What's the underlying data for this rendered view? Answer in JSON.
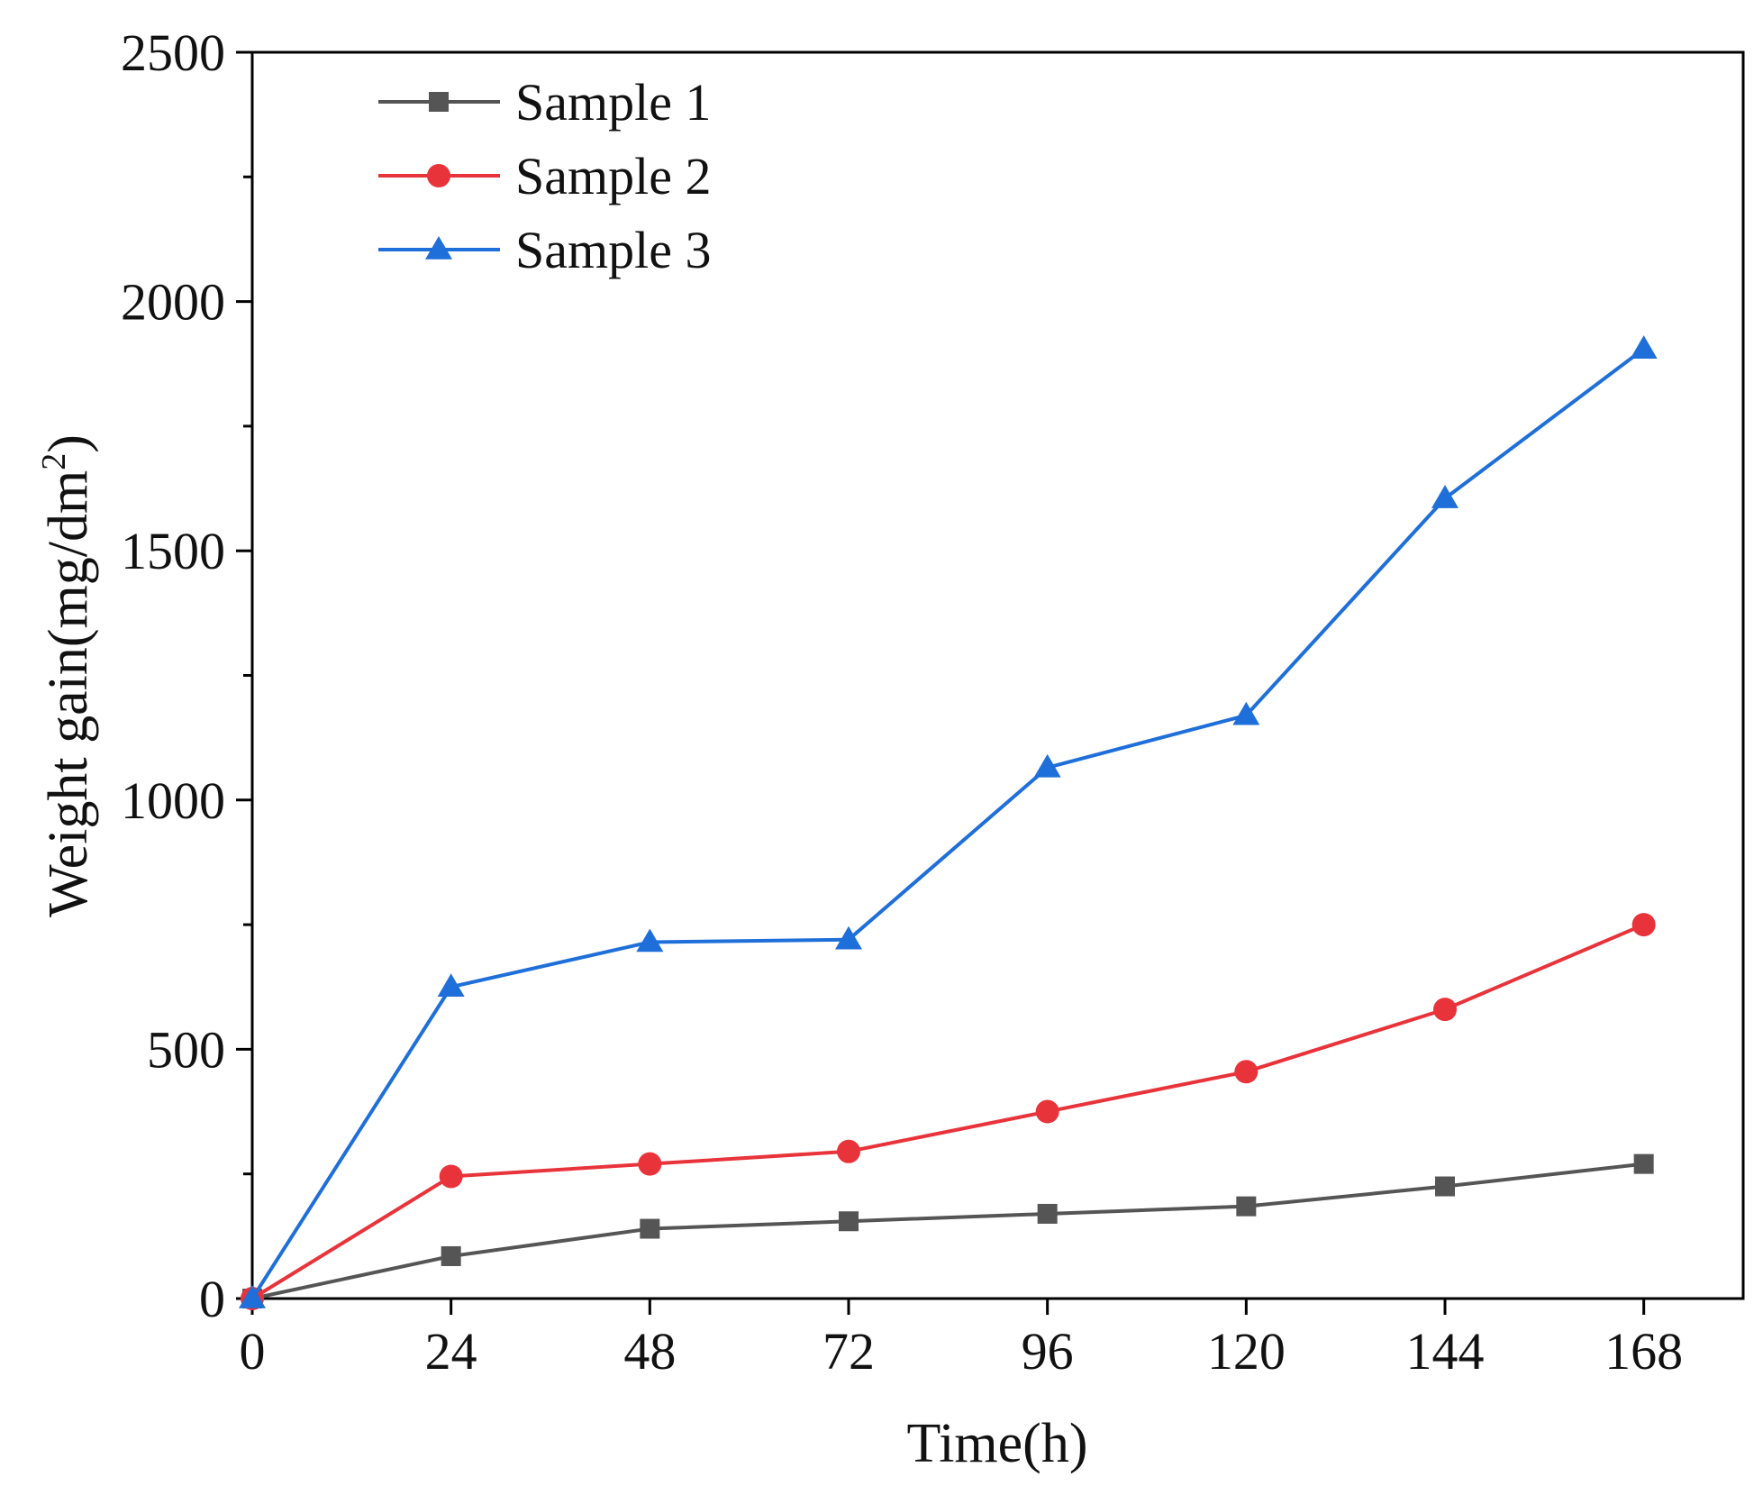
{
  "chart_data": {
    "type": "line",
    "title": "",
    "xlabel": "Time(h)",
    "ylabel": "Weight gain(mg/dm²)",
    "ylabel_main": "Weight gain(mg/dm",
    "ylabel_sup": "2",
    "ylabel_close": ")",
    "x": [
      0,
      24,
      48,
      72,
      96,
      120,
      144,
      168
    ],
    "xlim": [
      0,
      180
    ],
    "ylim": [
      0,
      2500
    ],
    "xticks": [
      "0",
      "24",
      "48",
      "72",
      "96",
      "120",
      "144",
      "168"
    ],
    "yticks": [
      "0",
      "500",
      "1000",
      "1500",
      "2000",
      "2500"
    ],
    "legend_position": "top-left",
    "grid": false,
    "series": [
      {
        "name": "Sample 1",
        "color": "#555555",
        "marker": "square",
        "values": [
          0,
          85,
          140,
          155,
          170,
          185,
          225,
          270
        ]
      },
      {
        "name": "Sample 2",
        "color": "#e8333a",
        "marker": "circle",
        "values": [
          0,
          245,
          270,
          295,
          375,
          455,
          580,
          750
        ]
      },
      {
        "name": "Sample 3",
        "color": "#1e6fd9",
        "marker": "triangle",
        "values": [
          0,
          625,
          715,
          720,
          1065,
          1170,
          1605,
          1905
        ]
      }
    ]
  }
}
